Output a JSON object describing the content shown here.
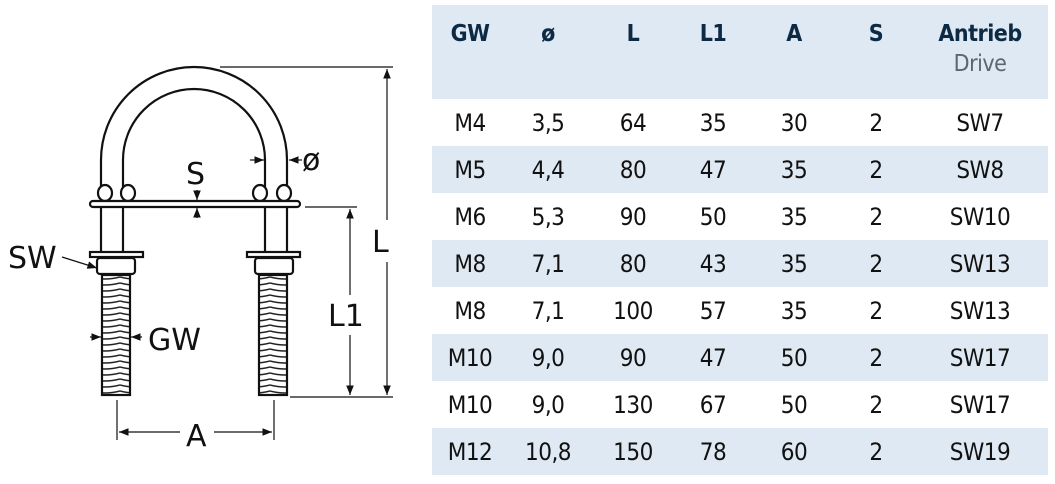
{
  "diagram": {
    "labels": {
      "L": "L",
      "L1": "L1",
      "A": "A",
      "S": "S",
      "diameter": "ø",
      "SW": "SW",
      "GW": "GW"
    }
  },
  "table": {
    "columns": [
      {
        "label": "GW"
      },
      {
        "label": "ø"
      },
      {
        "label": "L"
      },
      {
        "label": "L1"
      },
      {
        "label": "A"
      },
      {
        "label": "S"
      },
      {
        "label": "Antrieb",
        "sub": "Drive"
      }
    ],
    "rows": [
      [
        "M4",
        "3,5",
        "64",
        "35",
        "30",
        "2",
        "SW7"
      ],
      [
        "M5",
        "4,4",
        "80",
        "47",
        "35",
        "2",
        "SW8"
      ],
      [
        "M6",
        "5,3",
        "90",
        "50",
        "35",
        "2",
        "SW10"
      ],
      [
        "M8",
        "7,1",
        "80",
        "43",
        "35",
        "2",
        "SW13"
      ],
      [
        "M8",
        "7,1",
        "100",
        "57",
        "35",
        "2",
        "SW13"
      ],
      [
        "M10",
        "9,0",
        "90",
        "47",
        "50",
        "2",
        "SW17"
      ],
      [
        "M10",
        "9,0",
        "130",
        "67",
        "50",
        "2",
        "SW17"
      ],
      [
        "M12",
        "10,8",
        "150",
        "78",
        "60",
        "2",
        "SW19"
      ]
    ],
    "colors": {
      "header_bg": "#dfe9f3",
      "header_text": "#0d2a45",
      "stripe": "#dfe9f3",
      "sub_text": "#5b6670"
    }
  }
}
